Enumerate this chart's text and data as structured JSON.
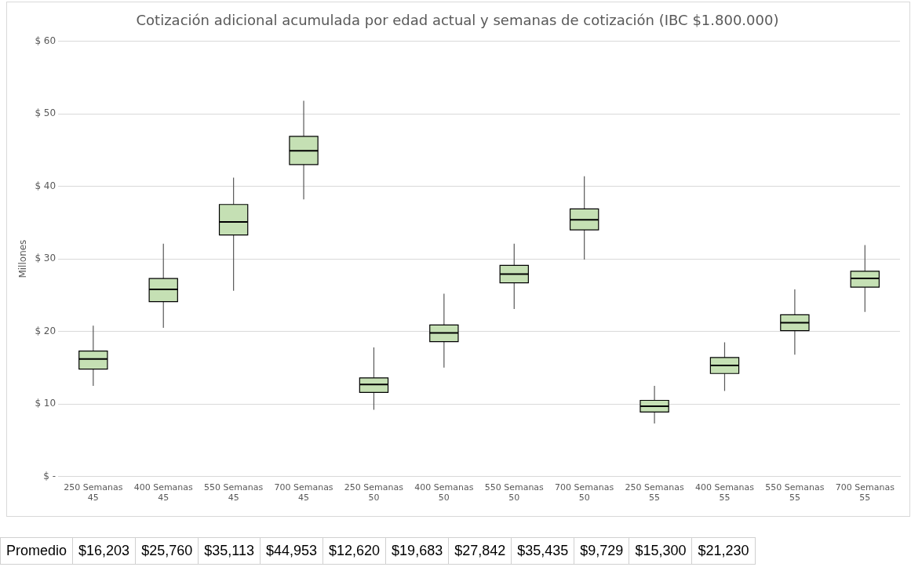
{
  "chart_data": {
    "type": "box",
    "title": "Cotización adicional acumulada por edad actual y semanas de cotización (IBC $1.800.000)",
    "ylabel": "Millones",
    "categories": [
      "250 Semanas\n45",
      "400 Semanas\n45",
      "550 Semanas\n45",
      "700 Semanas\n45",
      "250 Semanas\n50",
      "400 Semanas\n50",
      "550 Semanas\n50",
      "700 Semanas\n50",
      "250 Semanas\n55",
      "400 Semanas\n55",
      "550 Semanas\n55",
      "700 Semanas\n55"
    ],
    "series": [
      {
        "color": "#c5e0b4",
        "boxes": [
          {
            "low": 12.5,
            "q1": 14.8,
            "median": 16.2,
            "q3": 17.3,
            "high": 20.8
          },
          {
            "low": 20.5,
            "q1": 24.1,
            "median": 25.8,
            "q3": 27.3,
            "high": 32.1
          },
          {
            "low": 25.6,
            "q1": 33.3,
            "median": 35.1,
            "q3": 37.5,
            "high": 41.2
          },
          {
            "low": 38.2,
            "q1": 43.0,
            "median": 44.9,
            "q3": 46.9,
            "high": 51.8
          },
          {
            "low": 9.2,
            "q1": 11.6,
            "median": 12.7,
            "q3": 13.6,
            "high": 17.8
          },
          {
            "low": 15.0,
            "q1": 18.6,
            "median": 19.8,
            "q3": 20.9,
            "high": 25.2
          },
          {
            "low": 23.1,
            "q1": 26.7,
            "median": 27.9,
            "q3": 29.1,
            "high": 32.1
          },
          {
            "low": 29.9,
            "q1": 34.0,
            "median": 35.4,
            "q3": 36.9,
            "high": 41.4
          },
          {
            "low": 7.3,
            "q1": 8.9,
            "median": 9.7,
            "q3": 10.5,
            "high": 12.5
          },
          {
            "low": 11.8,
            "q1": 14.2,
            "median": 15.3,
            "q3": 16.4,
            "high": 18.5
          },
          {
            "low": 16.8,
            "q1": 20.1,
            "median": 21.2,
            "q3": 22.3,
            "high": 25.8
          },
          {
            "low": 22.7,
            "q1": 26.1,
            "median": 27.3,
            "q3": 28.3,
            "high": 31.9
          }
        ]
      }
    ],
    "value_labels": [
      "$16,203",
      "$25,760",
      "$35,113",
      "$44,953",
      "$12,620",
      "$19,683",
      "$27,842",
      "$35,435",
      "$9,729",
      "$15,300",
      "$21,230",
      null
    ],
    "annotations": [
      "Promedio"
    ],
    "ylim": [
      0,
      60
    ],
    "yticks": [
      {
        "value": 0,
        "label": "$ -"
      },
      {
        "value": 10,
        "label": "$ 10"
      },
      {
        "value": 20,
        "label": "$ 20"
      },
      {
        "value": 30,
        "label": "$ 30"
      },
      {
        "value": 40,
        "label": "$ 40"
      },
      {
        "value": 50,
        "label": "$ 50"
      },
      {
        "value": 60,
        "label": "$ 60"
      }
    ],
    "grid": "y",
    "legend": false
  }
}
